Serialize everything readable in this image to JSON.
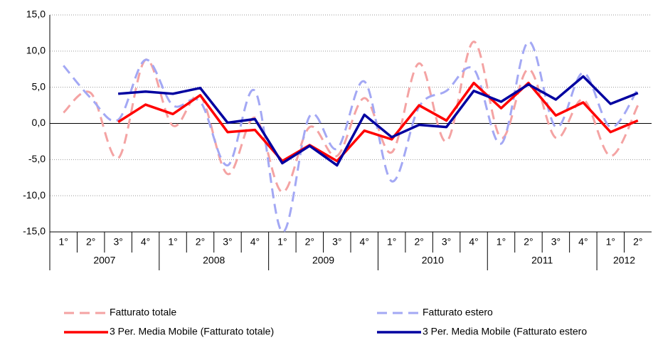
{
  "chart_data": {
    "type": "line",
    "groups": [
      {
        "label": "2007",
        "categories": [
          "1°",
          "2°",
          "3°",
          "4°"
        ]
      },
      {
        "label": "2008",
        "categories": [
          "1°",
          "2°",
          "3°",
          "4°"
        ]
      },
      {
        "label": "2009",
        "categories": [
          "1°",
          "2°",
          "3°",
          "4°"
        ]
      },
      {
        "label": "2010",
        "categories": [
          "1°",
          "2°",
          "3°",
          "4°"
        ]
      },
      {
        "label": "2011",
        "categories": [
          "1°",
          "2°",
          "3°",
          "4°"
        ]
      },
      {
        "label": "2012",
        "categories": [
          "1°",
          "2°"
        ]
      }
    ],
    "series": [
      {
        "name": "Fatturato totale",
        "color": "#f4a3a3",
        "dashed": true,
        "smooth": true,
        "values": [
          1.5,
          4.2,
          -4.8,
          8.8,
          -0.3,
          3.8,
          -7.0,
          0.8,
          -9.5,
          -0.5,
          -4.5,
          3.5,
          -4.0,
          8.3,
          -2.5,
          11.3,
          -2.0,
          7.5,
          -2.0,
          3.3,
          -4.5,
          2.5
        ]
      },
      {
        "name": "Fatturato estero",
        "color": "#a3a8f4",
        "dashed": true,
        "smooth": true,
        "values": [
          8.0,
          3.5,
          0.5,
          8.8,
          2.5,
          3.0,
          -5.8,
          4.5,
          -15.0,
          1.0,
          -3.5,
          5.8,
          -8.0,
          2.3,
          4.5,
          7.5,
          -2.8,
          11.3,
          -0.5,
          7.0,
          -0.5,
          4.8
        ]
      },
      {
        "name": "3 Per. Media Mobile (Fatturato totale)",
        "color": "#ff0000",
        "dashed": false,
        "smooth": false,
        "values": [
          null,
          null,
          0.2,
          2.6,
          1.3,
          3.9,
          -1.2,
          -0.9,
          -5.2,
          -3.0,
          -5.2,
          -1.0,
          -2.2,
          2.5,
          0.4,
          5.6,
          2.1,
          5.6,
          1.1,
          2.9,
          -1.2,
          0.4
        ]
      },
      {
        "name": "3 Per. Media Mobile (Fatturato estero",
        "color": "#0000a0",
        "dashed": false,
        "smooth": false,
        "values": [
          null,
          null,
          4.1,
          4.4,
          4.1,
          4.9,
          0.1,
          0.6,
          -5.5,
          -3.1,
          -5.8,
          1.2,
          -1.9,
          -0.2,
          -0.5,
          4.5,
          3.0,
          5.4,
          3.3,
          6.5,
          2.7,
          4.2
        ]
      }
    ],
    "ylim": [
      -15,
      15
    ],
    "yticks": [
      {
        "value": -15,
        "label": "-15,0"
      },
      {
        "value": -10,
        "label": "-10,0"
      },
      {
        "value": -5,
        "label": "-5,0"
      },
      {
        "value": 0,
        "label": "0,0"
      },
      {
        "value": 5,
        "label": "5,0"
      },
      {
        "value": 10,
        "label": "10,0"
      },
      {
        "value": 15,
        "label": "15,0"
      }
    ],
    "grid": true,
    "legend": "bottom"
  }
}
